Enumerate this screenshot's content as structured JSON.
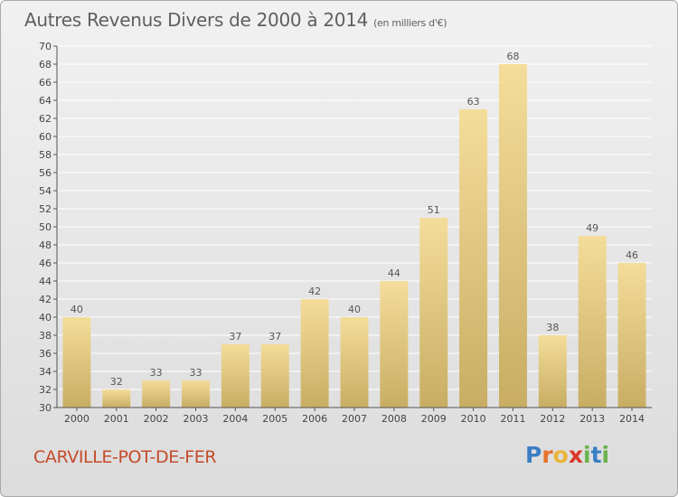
{
  "header": {
    "title": "Autres Revenus Divers de 2000 à 2014",
    "unit": "(en milliers d'€)"
  },
  "footer": {
    "commune": "CARVILLE-POT-DE-FER"
  },
  "logo": {
    "letters": [
      {
        "ch": "P",
        "color": "#3a7fc4"
      },
      {
        "ch": "r",
        "color": "#e5732b"
      },
      {
        "ch": "o",
        "color": "#e9b53a"
      },
      {
        "ch": "x",
        "color": "#d93a2b"
      },
      {
        "ch": "i",
        "color": "#6ab34a"
      },
      {
        "ch": "t",
        "color": "#3a7fc4"
      },
      {
        "ch": "i",
        "color": "#6ab34a"
      }
    ]
  },
  "colors": {
    "bar_top": "#f4dd9a",
    "bar_bottom": "#c8ad63",
    "axis": "#555555",
    "grid": "#ffffff"
  },
  "chart_data": {
    "type": "bar",
    "categories": [
      "2000",
      "2001",
      "2002",
      "2003",
      "2004",
      "2005",
      "2006",
      "2007",
      "2008",
      "2009",
      "2010",
      "2011",
      "2012",
      "2013",
      "2014"
    ],
    "values": [
      40,
      32,
      33,
      33,
      37,
      37,
      42,
      40,
      44,
      51,
      63,
      68,
      38,
      49,
      46
    ],
    "ylim": [
      30,
      70
    ],
    "ytick_step": 2,
    "grid": true
  }
}
